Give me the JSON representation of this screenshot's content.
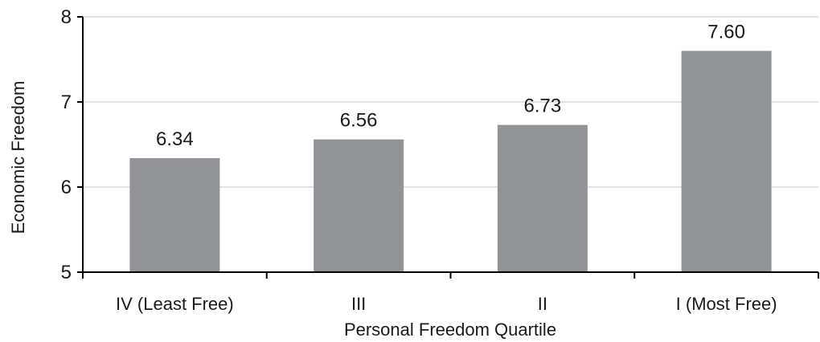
{
  "chart_data": {
    "type": "bar",
    "title": "",
    "xlabel": "Personal Freedom Quartile",
    "ylabel": "Economic Freedom",
    "categories": [
      "IV (Least Free)",
      "III",
      "II",
      "I (Most Free)"
    ],
    "values": [
      6.34,
      6.56,
      6.73,
      7.6
    ],
    "data_labels": [
      "6.34",
      "6.56",
      "6.73",
      "7.60"
    ],
    "ylim": [
      5,
      8
    ],
    "yticks": [
      5,
      6,
      7,
      8
    ],
    "ytick_labels": [
      "5",
      "6",
      "7",
      "8"
    ],
    "grid": true,
    "bar_color": "#929396",
    "grid_color": "#d9d9d9",
    "axis_color": "#000000"
  }
}
